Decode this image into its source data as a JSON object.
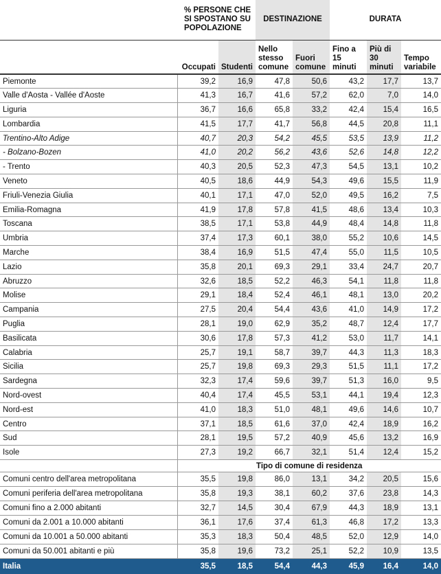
{
  "table": {
    "group_headers": [
      "% PERSONE CHE SI SPOSTANO SU POPOLAZIONE",
      "DESTINAZIONE",
      "DURATA"
    ],
    "columns": [
      "Occupati",
      "Studenti",
      "Nello stesso comune",
      "Fuori comune",
      "Fino a 15 minuti",
      "Più di 30 minuti",
      "Tempo variabile"
    ],
    "sections": [
      {
        "rows": [
          {
            "label": "Piemonte",
            "values": [
              "39,2",
              "16,9",
              "47,8",
              "50,6",
              "43,2",
              "17,7",
              "13,7"
            ]
          },
          {
            "label": "Valle d'Aosta - Vallée d'Aoste",
            "values": [
              "41,3",
              "16,7",
              "41,6",
              "57,2",
              "62,0",
              "7,0",
              "14,0"
            ]
          },
          {
            "label": "Liguria",
            "values": [
              "36,7",
              "16,6",
              "65,8",
              "33,2",
              "42,4",
              "15,4",
              "16,5"
            ]
          },
          {
            "label": "Lombardia",
            "values": [
              "41,5",
              "17,7",
              "41,7",
              "56,8",
              "44,5",
              "20,8",
              "11,1"
            ]
          },
          {
            "label": "Trentino-Alto Adige",
            "italic": true,
            "values": [
              "40,7",
              "20,3",
              "54,2",
              "45,5",
              "53,5",
              "13,9",
              "11,2"
            ]
          },
          {
            "label": "- Bolzano-Bozen",
            "italic": true,
            "values": [
              "41,0",
              "20,2",
              "56,2",
              "43,6",
              "52,6",
              "14,8",
              "12,2"
            ]
          },
          {
            "label": "- Trento",
            "values": [
              "40,3",
              "20,5",
              "52,3",
              "47,3",
              "54,5",
              "13,1",
              "10,2"
            ]
          },
          {
            "label": "Veneto",
            "values": [
              "40,5",
              "18,6",
              "44,9",
              "54,3",
              "49,6",
              "15,5",
              "11,9"
            ]
          },
          {
            "label": "Friuli-Venezia Giulia",
            "values": [
              "40,1",
              "17,1",
              "47,0",
              "52,0",
              "49,5",
              "16,2",
              "7,5"
            ]
          },
          {
            "label": "Emilia-Romagna",
            "values": [
              "41,9",
              "17,8",
              "57,8",
              "41,5",
              "48,6",
              "13,4",
              "10,3"
            ]
          },
          {
            "label": "Toscana",
            "values": [
              "38,5",
              "17,1",
              "53,8",
              "44,9",
              "48,4",
              "14,8",
              "11,8"
            ]
          },
          {
            "label": "Umbria",
            "values": [
              "37,4",
              "17,3",
              "60,1",
              "38,0",
              "55,2",
              "10,6",
              "14,5"
            ]
          },
          {
            "label": "Marche",
            "values": [
              "38,4",
              "16,9",
              "51,5",
              "47,4",
              "55,0",
              "11,5",
              "10,5"
            ]
          },
          {
            "label": "Lazio",
            "values": [
              "35,8",
              "20,1",
              "69,3",
              "29,1",
              "33,4",
              "24,7",
              "20,7"
            ]
          },
          {
            "label": "Abruzzo",
            "values": [
              "32,6",
              "18,5",
              "52,2",
              "46,3",
              "54,1",
              "11,8",
              "11,8"
            ]
          },
          {
            "label": "Molise",
            "values": [
              "29,1",
              "18,4",
              "52,4",
              "46,1",
              "48,1",
              "13,0",
              "20,2"
            ]
          },
          {
            "label": "Campania",
            "values": [
              "27,5",
              "20,4",
              "54,4",
              "43,6",
              "41,0",
              "14,9",
              "17,2"
            ]
          },
          {
            "label": "Puglia",
            "values": [
              "28,1",
              "19,0",
              "62,9",
              "35,2",
              "48,7",
              "12,4",
              "17,7"
            ]
          },
          {
            "label": "Basilicata",
            "values": [
              "30,6",
              "17,8",
              "57,3",
              "41,2",
              "53,0",
              "11,7",
              "14,1"
            ]
          },
          {
            "label": "Calabria",
            "values": [
              "25,7",
              "19,1",
              "58,7",
              "39,7",
              "44,3",
              "11,3",
              "18,3"
            ]
          },
          {
            "label": "Sicilia",
            "values": [
              "25,7",
              "19,8",
              "69,3",
              "29,3",
              "51,5",
              "11,1",
              "17,2"
            ]
          },
          {
            "label": "Sardegna",
            "values": [
              "32,3",
              "17,4",
              "59,6",
              "39,7",
              "51,3",
              "16,0",
              "9,5"
            ]
          },
          {
            "label": "Nord-ovest",
            "values": [
              "40,4",
              "17,4",
              "45,5",
              "53,1",
              "44,1",
              "19,4",
              "12,3"
            ]
          },
          {
            "label": "Nord-est",
            "values": [
              "41,0",
              "18,3",
              "51,0",
              "48,1",
              "49,6",
              "14,6",
              "10,7"
            ]
          },
          {
            "label": "Centro",
            "values": [
              "37,1",
              "18,5",
              "61,6",
              "37,0",
              "42,4",
              "18,9",
              "16,2"
            ]
          },
          {
            "label": "Sud",
            "values": [
              "28,1",
              "19,5",
              "57,2",
              "40,9",
              "45,6",
              "13,2",
              "16,9"
            ]
          },
          {
            "label": "Isole",
            "values": [
              "27,3",
              "19,2",
              "66,7",
              "32,1",
              "51,4",
              "12,4",
              "15,2"
            ]
          }
        ]
      },
      {
        "title": "Tipo di comune di residenza",
        "rows": [
          {
            "label": "Comuni centro dell'area metropolitana",
            "values": [
              "35,5",
              "19,8",
              "86,0",
              "13,1",
              "34,2",
              "20,5",
              "15,6"
            ]
          },
          {
            "label": "Comuni periferia dell'area metropolitana",
            "values": [
              "35,8",
              "19,3",
              "38,1",
              "60,2",
              "37,6",
              "23,8",
              "14,3"
            ]
          },
          {
            "label": "Comuni fino a 2.000 abitanti",
            "values": [
              "32,7",
              "14,5",
              "30,4",
              "67,9",
              "44,3",
              "18,9",
              "13,1"
            ]
          },
          {
            "label": "Comuni da 2.001 a 10.000 abitanti",
            "values": [
              "36,1",
              "17,6",
              "37,4",
              "61,3",
              "46,8",
              "17,2",
              "13,3"
            ]
          },
          {
            "label": "Comuni da 10.001 a 50.000 abitanti",
            "values": [
              "35,3",
              "18,3",
              "50,4",
              "48,5",
              "52,0",
              "12,9",
              "14,0"
            ]
          },
          {
            "label": "Comuni da 50.001 abitanti e più",
            "values": [
              "35,8",
              "19,6",
              "73,2",
              "25,1",
              "52,2",
              "10,9",
              "13,5"
            ]
          }
        ]
      }
    ],
    "total": {
      "label": "Italia",
      "values": [
        "35,5",
        "18,5",
        "54,4",
        "44,3",
        "45,9",
        "16,4",
        "14,0"
      ]
    }
  }
}
